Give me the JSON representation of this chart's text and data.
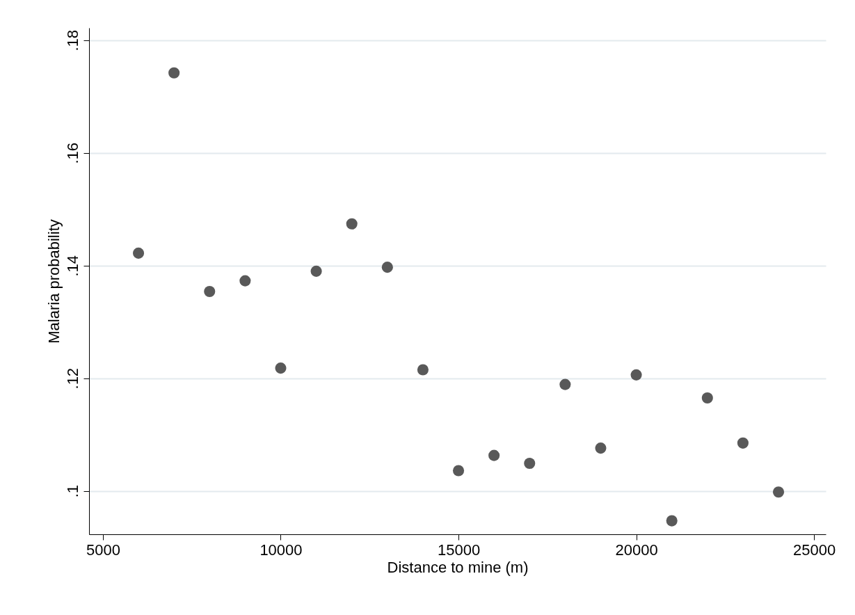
{
  "chart_data": {
    "type": "scatter",
    "xlabel": "Distance to mine (m)",
    "ylabel": "Malaria probability",
    "x": [
      6000,
      7000,
      8000,
      9000,
      10000,
      11000,
      12000,
      13000,
      14000,
      15000,
      16000,
      17000,
      18000,
      19000,
      20000,
      21000,
      22000,
      23000,
      24000
    ],
    "series": [
      {
        "color": "#595959",
        "values": [
          0.1422,
          0.1742,
          0.1354,
          0.1373,
          0.1218,
          0.139,
          0.1474,
          0.1397,
          0.1215,
          0.1036,
          0.1063,
          0.1049,
          0.1189,
          0.1076,
          0.1206,
          0.0947,
          0.1165,
          0.1085,
          0.0998
        ]
      }
    ],
    "xlim": [
      4610,
      25330
    ],
    "ylim": [
      0.0923,
      0.1822
    ],
    "xticks": [
      5000,
      10000,
      15000,
      20000,
      25000
    ],
    "yticks": [
      {
        "value": 0.1,
        "label": ".1"
      },
      {
        "value": 0.12,
        "label": ".12"
      },
      {
        "value": 0.14,
        "label": ".14"
      },
      {
        "value": 0.16,
        "label": ".16"
      },
      {
        "value": 0.18,
        "label": ".18"
      }
    ],
    "grid": "y",
    "marker": "circle",
    "legend": false
  }
}
